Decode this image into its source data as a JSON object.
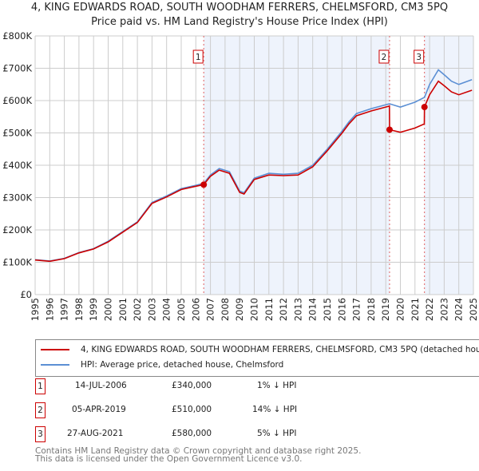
{
  "title": "4, KING EDWARDS ROAD, SOUTH WOODHAM FERRERS, CHELMSFORD, CM3 5PQ",
  "subtitle": "Price paid vs. HM Land Registry's House Price Index (HPI)",
  "chart_data": {
    "type": "line",
    "title": "4, KING EDWARDS ROAD, SOUTH WOODHAM FERRERS, CHELMSFORD, CM3 5PQ",
    "subtitle": "Price paid vs. HM Land Registry's House Price Index (HPI)",
    "xlim": [
      1995,
      2025
    ],
    "ylim": [
      0,
      800000
    ],
    "x_ticks": [
      "1995",
      "1996",
      "1997",
      "1998",
      "1999",
      "2000",
      "2001",
      "2002",
      "2003",
      "2004",
      "2005",
      "2006",
      "2007",
      "2008",
      "2009",
      "2010",
      "2011",
      "2012",
      "2013",
      "2014",
      "2015",
      "2016",
      "2017",
      "2018",
      "2019",
      "2020",
      "2021",
      "2022",
      "2023",
      "2024",
      "2025"
    ],
    "y_ticks": [
      {
        "v": 0,
        "label": "£0"
      },
      {
        "v": 100000,
        "label": "£100K"
      },
      {
        "v": 200000,
        "label": "£200K"
      },
      {
        "v": 300000,
        "label": "£300K"
      },
      {
        "v": 400000,
        "label": "£400K"
      },
      {
        "v": 500000,
        "label": "£500K"
      },
      {
        "v": 600000,
        "label": "£600K"
      },
      {
        "v": 700000,
        "label": "£700K"
      },
      {
        "v": 800000,
        "label": "£800K"
      }
    ],
    "grid": true,
    "x": [
      1995,
      1996,
      1997,
      1998,
      1999,
      2000,
      2001,
      2002,
      2003,
      2004,
      2005,
      2006,
      2006.54,
      2007,
      2007.6,
      2008.3,
      2009,
      2009.3,
      2010,
      2011,
      2012,
      2013,
      2014,
      2015,
      2016,
      2016.5,
      2017,
      2018,
      2019.25,
      2019.26,
      2020,
      2021,
      2021.64,
      2021.65,
      2022,
      2022.6,
      2023,
      2023.5,
      2024,
      2024.9
    ],
    "series": [
      {
        "name": "4, KING EDWARDS ROAD, SOUTH WOODHAM FERRERS, CHELMSFORD, CM3 5PQ (detached house)",
        "color": "#cc0000",
        "values": [
          107000,
          103000,
          111000,
          129000,
          141000,
          163000,
          193000,
          223000,
          282000,
          302000,
          325000,
          335000,
          340000,
          366000,
          385000,
          375000,
          316000,
          311000,
          356000,
          370000,
          368000,
          370000,
          395000,
          445000,
          499000,
          529000,
          553000,
          568000,
          583000,
          510000,
          502000,
          515000,
          528000,
          580000,
          618000,
          660000,
          646000,
          627000,
          618000,
          632000
        ]
      },
      {
        "name": "HPI: Average price, detached house, Chelmsford",
        "color": "#5b8fd4",
        "values": [
          108000,
          104000,
          112000,
          130000,
          142000,
          165000,
          195000,
          225000,
          285000,
          305000,
          328000,
          338000,
          344000,
          370000,
          390000,
          380000,
          320000,
          315000,
          360000,
          375000,
          372000,
          375000,
          400000,
          450000,
          505000,
          535000,
          560000,
          575000,
          590000,
          590000,
          580000,
          595000,
          610000,
          610000,
          650000,
          695000,
          680000,
          660000,
          650000,
          665000
        ]
      }
    ],
    "sales": [
      {
        "id": "1",
        "x": 2006.54,
        "price": 340000,
        "date": "14-JUL-2006",
        "price_label": "£340,000",
        "hpi_diff": "1% ↓ HPI"
      },
      {
        "id": "2",
        "x": 2019.26,
        "price": 510000,
        "date": "05-APR-2019",
        "price_label": "£510,000",
        "hpi_diff": "14% ↓ HPI"
      },
      {
        "id": "3",
        "x": 2021.65,
        "price": 580000,
        "date": "27-AUG-2021",
        "price_label": "£580,000",
        "hpi_diff": "5% ↓ HPI"
      }
    ]
  },
  "legend": {
    "property": "4, KING EDWARDS ROAD, SOUTH WOODHAM FERRERS, CHELMSFORD, CM3 5PQ (detached house)",
    "hpi": "HPI: Average price, detached house, Chelmsford"
  },
  "footer": {
    "line1": "Contains HM Land Registry data © Crown copyright and database right 2025.",
    "line2": "This data is licensed under the Open Government Licence v3.0."
  }
}
